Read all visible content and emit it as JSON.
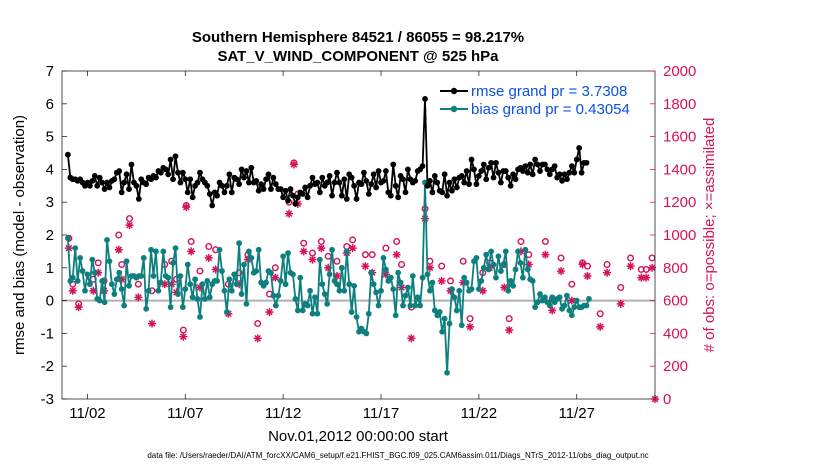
{
  "title_line1": "Southern Hemisphere 84521 / 86055 = 98.217%",
  "title_line2": "SAT_V_WIND_COMPONENT @ 525 hPa",
  "footer": "data file: /Users/raeder/DAI/ATM_forcXX/CAM6_setup/f.e21.FHIST_BGC.f09_025.CAM6assim.011/Diags_NTrS_2012-11/obs_diag_output.nc",
  "colors": {
    "rmse": "#000000",
    "bias": "#0e7f7f",
    "obs": "#d6125a",
    "zero_line": "#b0b0b0"
  },
  "chart_data": {
    "type": "line",
    "title": "Southern Hemisphere 84521 / 86055 = 98.217% SAT_V_WIND_COMPONENT @ 525 hPa",
    "xlabel": "Nov.01,2012 00:00:00 start",
    "ylabel": "rmse and bias (model - observation)",
    "y2label": "# of obs: o=possible; ×=assimilated",
    "xlim": [
      0.7,
      31.0
    ],
    "ylim": [
      -3,
      7
    ],
    "y2lim": [
      0,
      2000
    ],
    "x_ticks": [
      {
        "x": 2,
        "label": "11/02"
      },
      {
        "x": 7,
        "label": "11/07"
      },
      {
        "x": 12,
        "label": "11/12"
      },
      {
        "x": 17,
        "label": "11/17"
      },
      {
        "x": 22,
        "label": "11/22"
      },
      {
        "x": 27,
        "label": "11/27"
      }
    ],
    "y_ticks": [
      -3,
      -2,
      -1,
      0,
      1,
      2,
      3,
      4,
      5,
      6,
      7
    ],
    "y2_ticks": [
      0,
      200,
      400,
      600,
      800,
      1000,
      1200,
      1400,
      1600,
      1800,
      2000
    ],
    "grid": false,
    "legend_position": "top-right",
    "legend": [
      {
        "series": "rmse",
        "label": "rmse grand pr = 3.7308"
      },
      {
        "series": "bias",
        "label": "bias grand pr = 0.43054"
      }
    ],
    "x_start": 1.0,
    "x_step": 0.125,
    "series": [
      {
        "name": "rmse",
        "axis": "left",
        "values": [
          4.45,
          3.75,
          3.7,
          3.7,
          3.65,
          3.7,
          3.6,
          3.5,
          3.6,
          3.5,
          3.65,
          3.8,
          3.5,
          3.75,
          3.6,
          3.4,
          3.6,
          3.45,
          3.65,
          3.7,
          3.9,
          3.95,
          3.3,
          3.6,
          3.85,
          3.4,
          4.15,
          3.6,
          3.5,
          3.1,
          3.7,
          3.6,
          3.55,
          3.75,
          3.7,
          3.8,
          3.75,
          3.95,
          3.9,
          4.05,
          4.0,
          3.85,
          4.3,
          3.7,
          4.4,
          3.9,
          3.6,
          3.9,
          3.7,
          3.3,
          3.7,
          3.15,
          3.5,
          3.6,
          3.9,
          3.7,
          3.6,
          3.5,
          3.25,
          2.9,
          3.3,
          3.2,
          3.6,
          3.5,
          3.3,
          3.5,
          3.85,
          3.3,
          3.75,
          3.7,
          3.55,
          4.0,
          3.75,
          3.95,
          3.6,
          4.05,
          3.6,
          3.65,
          3.35,
          3.55,
          3.4,
          3.7,
          3.85,
          3.4,
          3.75,
          3.55,
          3.4,
          3.4,
          3.15,
          3.35,
          3.05,
          3.4,
          3.2,
          2.95,
          3.15,
          3.3,
          3.25,
          3.45,
          3.15,
          3.5,
          3.75,
          3.55,
          3.6,
          3.3,
          3.75,
          3.5,
          3.6,
          3.8,
          3.2,
          3.6,
          3.9,
          3.6,
          3.2,
          3.7,
          3.1,
          3.85,
          3.75,
          3.5,
          3.1,
          3.6,
          3.55,
          3.9,
          3.65,
          3.25,
          3.55,
          3.85,
          3.45,
          3.95,
          3.6,
          3.65,
          3.95,
          3.3,
          3.2,
          4.15,
          3.5,
          3.15,
          3.8,
          3.7,
          3.3,
          4.0,
          3.7,
          3.6,
          3.65,
          3.95,
          4.0,
          4.1,
          6.15,
          3.5,
          3.65,
          3.3,
          3.8,
          3.6,
          3.35,
          3.3,
          3.85,
          3.2,
          3.6,
          3.35,
          3.7,
          3.45,
          3.75,
          3.8,
          3.6,
          3.95,
          3.55,
          4.3,
          4.0,
          3.55,
          3.8,
          3.95,
          4.15,
          3.7,
          4.05,
          4.2,
          3.75,
          4.2,
          3.9,
          3.6,
          3.95,
          3.95,
          3.75,
          3.5,
          3.85,
          3.7,
          4.0,
          4.05,
          3.95,
          4.1,
          3.9,
          4.15,
          3.85,
          4.3,
          4.15,
          3.95,
          4.15,
          4.15,
          4.0,
          3.85,
          4.0,
          4.1,
          3.75,
          3.85,
          3.65,
          3.85,
          3.7,
          3.9,
          4.1,
          3.9,
          4.3,
          4.65,
          3.9,
          4.2,
          4.2
        ]
      },
      {
        "name": "bias",
        "axis": "left",
        "values": [
          1.9,
          0.6,
          0.7,
          1.6,
          0.6,
          1.3,
          0.9,
          0.3,
          0.8,
          0.5,
          1.25,
          0.85,
          0.05,
          0.0,
          0.6,
          -0.05,
          1.85,
          1.2,
          0.5,
          0.2,
          0.65,
          0.85,
          0.35,
          -0.15,
          1.2,
          0.45,
          0.75,
          0.75,
          0.7,
          0.75,
          0.75,
          1.3,
          -0.25,
          0.3,
          1.55,
          0.75,
          1.5,
          0.3,
          0.55,
          1.5,
          0.75,
          0.7,
          -0.2,
          1.15,
          1.6,
          0.2,
          0.75,
          -0.2,
          0.35,
          1.1,
          0.5,
          0.1,
          0.65,
          0.05,
          -0.5,
          0.5,
          0.05,
          0.6,
          0.1,
          0.5,
          0.6,
          0.6,
          1.55,
          0.9,
          0.3,
          -0.35,
          0.65,
          0.3,
          0.8,
          0.5,
          1.75,
          0.2,
          1.1,
          -0.1,
          1.5,
          1.3,
          0.85,
          0.9,
          1.55,
          0.55,
          0.45,
          0.55,
          0.9,
          0.85,
          0.15,
          -0.15,
          0.15,
          0.6,
          1.35,
          0.5,
          1.45,
          0.85,
          0.8,
          0.05,
          -0.3,
          0.7,
          -0.3,
          -0.1,
          -0.15,
          0.3,
          -0.4,
          0.1,
          -0.4,
          1.25,
          0.5,
          0.2,
          -0.1,
          0.8,
          1.55,
          0.6,
          0.5,
          0.3,
          1.0,
          0.3,
          1.5,
          0.5,
          -0.35,
          0.45,
          -0.5,
          -0.95,
          -0.85,
          -0.95,
          -1.0,
          -0.4,
          0.85,
          0.5,
          0.25,
          -0.15,
          0.3,
          1.3,
          0.95,
          0.6,
          0.7,
          0.35,
          -0.45,
          0.85,
          0.55,
          -0.15,
          0.15,
          0.4,
          -0.15,
          0.75,
          -0.15,
          0.1,
          -0.15,
          0.7,
          3.6,
          0.8,
          0.3,
          0.55,
          -0.3,
          -0.45,
          -0.35,
          -0.95,
          -0.55,
          -2.2,
          -0.7,
          0.35,
          0.1,
          -0.3,
          0.3,
          -0.75,
          0.7,
          0.55,
          0.3,
          0.35,
          1.2,
          1.3,
          0.35,
          0.6,
          1.0,
          1.4,
          0.95,
          1.5,
          1.1,
          0.7,
          1.35,
          0.9,
          1.1,
          1.5,
          0.3,
          0.6,
          0.45,
          0.95,
          1.5,
          1.15,
          0.7,
          1.55,
          0.95,
          0.65,
          0.6,
          -0.2,
          -0.05,
          0.2,
          0.0,
          0.1,
          -0.05,
          -0.15,
          0.1,
          -0.05,
          0.05,
          0.1,
          -0.25,
          -0.15,
          0.15,
          -0.3,
          -0.45,
          -0.2,
          0.0,
          -0.2,
          -0.2,
          -0.15,
          -0.15,
          0.05
        ]
      },
      {
        "name": "# possible (o)",
        "axis": "right",
        "marker": "circle",
        "points": [
          [
            1.05,
            980
          ],
          [
            1.25,
            700
          ],
          [
            1.55,
            580
          ],
          [
            2.3,
            730
          ],
          [
            2.55,
            830
          ],
          [
            2.85,
            720
          ],
          [
            3.6,
            1000
          ],
          [
            3.75,
            820
          ],
          [
            4.15,
            1100
          ],
          [
            4.6,
            700
          ],
          [
            5.3,
            660
          ],
          [
            5.95,
            820
          ],
          [
            6.3,
            840
          ],
          [
            6.55,
            730
          ],
          [
            6.9,
            420
          ],
          [
            7.05,
            1180
          ],
          [
            7.3,
            960
          ],
          [
            7.75,
            780
          ],
          [
            8.2,
            930
          ],
          [
            8.55,
            910
          ],
          [
            9.2,
            700
          ],
          [
            9.75,
            770
          ],
          [
            10.2,
            880
          ],
          [
            10.7,
            460
          ],
          [
            11.3,
            640
          ],
          [
            11.6,
            800
          ],
          [
            12.3,
            1200
          ],
          [
            12.55,
            1440
          ],
          [
            12.75,
            1250
          ],
          [
            13.05,
            950
          ],
          [
            13.5,
            890
          ],
          [
            13.95,
            960
          ],
          [
            14.3,
            870
          ],
          [
            14.75,
            840
          ],
          [
            15.25,
            930
          ],
          [
            15.55,
            970
          ],
          [
            16.2,
            880
          ],
          [
            16.55,
            880
          ],
          [
            17.25,
            920
          ],
          [
            17.8,
            960
          ],
          [
            18.05,
            820
          ],
          [
            18.55,
            560
          ],
          [
            19.25,
            1160
          ],
          [
            19.5,
            840
          ],
          [
            20.1,
            810
          ],
          [
            20.55,
            720
          ],
          [
            21.2,
            840
          ],
          [
            21.55,
            490
          ],
          [
            22.2,
            770
          ],
          [
            22.55,
            830
          ],
          [
            23.3,
            820
          ],
          [
            23.55,
            490
          ],
          [
            24.15,
            960
          ],
          [
            24.55,
            880
          ],
          [
            25.4,
            960
          ],
          [
            25.75,
            610
          ],
          [
            26.2,
            860
          ],
          [
            26.75,
            700
          ],
          [
            27.3,
            830
          ],
          [
            27.55,
            810
          ],
          [
            28.2,
            520
          ],
          [
            28.55,
            820
          ],
          [
            29.25,
            680
          ],
          [
            29.75,
            860
          ],
          [
            30.3,
            790
          ],
          [
            30.55,
            790
          ],
          [
            30.85,
            860
          ]
        ]
      },
      {
        "name": "# assimilated (×)",
        "axis": "right",
        "marker": "star",
        "points": [
          [
            1.05,
            920
          ],
          [
            1.25,
            660
          ],
          [
            1.55,
            560
          ],
          [
            2.3,
            660
          ],
          [
            2.55,
            770
          ],
          [
            2.85,
            660
          ],
          [
            3.6,
            910
          ],
          [
            3.75,
            730
          ],
          [
            4.15,
            1060
          ],
          [
            4.6,
            620
          ],
          [
            5.3,
            460
          ],
          [
            5.95,
            700
          ],
          [
            6.3,
            700
          ],
          [
            6.55,
            650
          ],
          [
            6.9,
            380
          ],
          [
            7.05,
            1170
          ],
          [
            7.3,
            900
          ],
          [
            7.75,
            680
          ],
          [
            8.2,
            860
          ],
          [
            8.55,
            790
          ],
          [
            9.2,
            520
          ],
          [
            9.75,
            700
          ],
          [
            10.2,
            850
          ],
          [
            10.7,
            370
          ],
          [
            11.3,
            530
          ],
          [
            11.6,
            740
          ],
          [
            12.3,
            1130
          ],
          [
            12.55,
            1430
          ],
          [
            12.75,
            1190
          ],
          [
            13.05,
            900
          ],
          [
            13.5,
            850
          ],
          [
            13.95,
            920
          ],
          [
            14.3,
            800
          ],
          [
            14.75,
            750
          ],
          [
            15.25,
            890
          ],
          [
            15.55,
            920
          ],
          [
            16.2,
            810
          ],
          [
            16.55,
            770
          ],
          [
            17.25,
            760
          ],
          [
            17.8,
            880
          ],
          [
            18.05,
            680
          ],
          [
            18.55,
            370
          ],
          [
            19.25,
            1100
          ],
          [
            19.5,
            800
          ],
          [
            20.1,
            720
          ],
          [
            20.55,
            660
          ],
          [
            21.2,
            710
          ],
          [
            21.55,
            440
          ],
          [
            22.2,
            660
          ],
          [
            22.55,
            800
          ],
          [
            23.3,
            680
          ],
          [
            23.55,
            420
          ],
          [
            24.15,
            900
          ],
          [
            24.55,
            820
          ],
          [
            25.4,
            880
          ],
          [
            25.75,
            540
          ],
          [
            26.2,
            780
          ],
          [
            26.75,
            600
          ],
          [
            27.3,
            820
          ],
          [
            27.55,
            750
          ],
          [
            28.2,
            440
          ],
          [
            28.55,
            770
          ],
          [
            29.25,
            580
          ],
          [
            29.75,
            810
          ],
          [
            30.3,
            740
          ],
          [
            30.55,
            740
          ],
          [
            30.85,
            800
          ],
          [
            31.0,
            0
          ]
        ]
      }
    ]
  }
}
